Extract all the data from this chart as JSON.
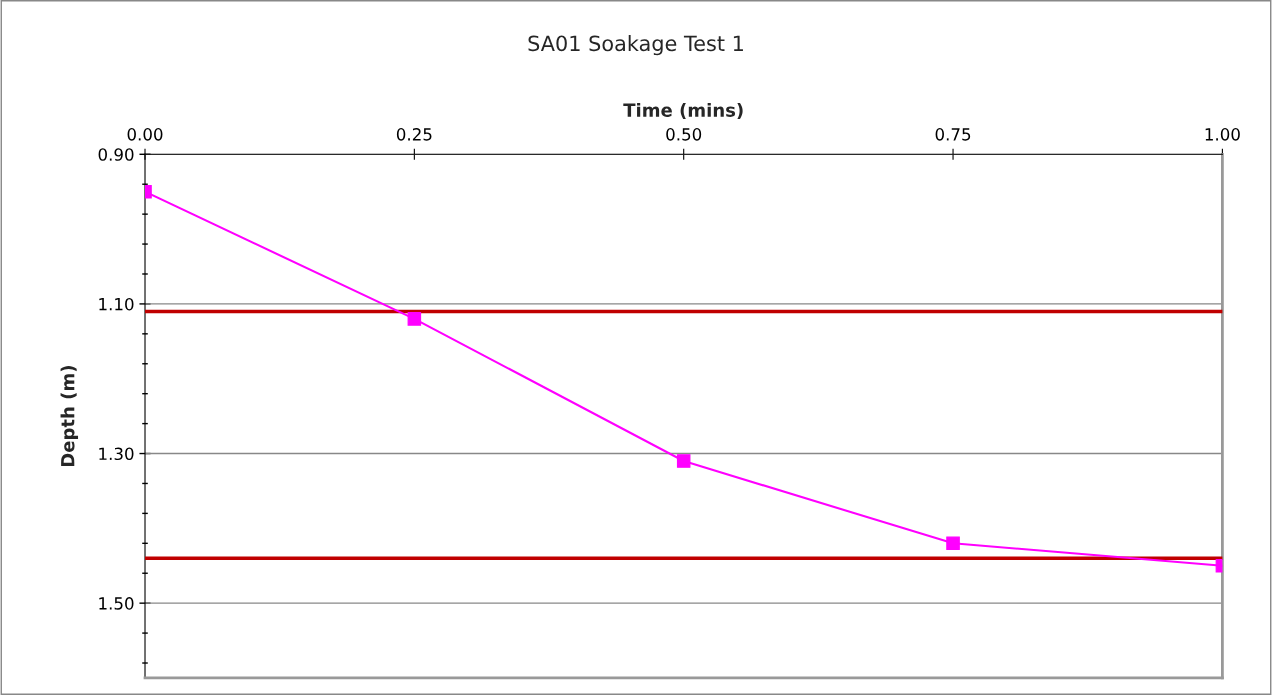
{
  "chart_data": {
    "type": "line",
    "title": "SA01 Soakage Test 1",
    "xlabel": "Time (mins)",
    "ylabel": "Depth (m)",
    "x": [
      0,
      0.25,
      0.5,
      0.75,
      1.0
    ],
    "series": [
      {
        "color": "#ff00ff",
        "values": [
          0.95,
          1.12,
          1.31,
          1.42,
          1.45
        ]
      }
    ],
    "marker": "square",
    "line_style": "solid",
    "xlim": [
      0,
      1
    ],
    "xticks": [
      {
        "value": 0,
        "label": "0.00"
      },
      {
        "value": 0.25,
        "label": "0.25"
      },
      {
        "value": 0.5,
        "label": "0.50"
      },
      {
        "value": 0.75,
        "label": "0.75"
      },
      {
        "value": 1.0,
        "label": "1.00"
      }
    ],
    "ylim": [
      1.6,
      0.9
    ],
    "yticks": [
      {
        "value": 0.9,
        "label": "0.90"
      },
      {
        "value": 0.94,
        "label": null
      },
      {
        "value": 0.98,
        "label": null
      },
      {
        "value": 1.02,
        "label": null
      },
      {
        "value": 1.06,
        "label": null
      },
      {
        "value": 1.1,
        "label": "1.10"
      },
      {
        "value": 1.14,
        "label": null
      },
      {
        "value": 1.18,
        "label": null
      },
      {
        "value": 1.22,
        "label": null
      },
      {
        "value": 1.26,
        "label": null
      },
      {
        "value": 1.3,
        "label": "1.30"
      },
      {
        "value": 1.34,
        "label": null
      },
      {
        "value": 1.38,
        "label": null
      },
      {
        "value": 1.42,
        "label": null
      },
      {
        "value": 1.46,
        "label": null
      },
      {
        "value": 1.5,
        "label": "1.50"
      },
      {
        "value": 1.54,
        "label": null
      },
      {
        "value": 1.58,
        "label": null
      }
    ],
    "grid": "y",
    "ref_lines": [
      {
        "axis": "y",
        "value": 1.11,
        "color": "#c00000"
      },
      {
        "axis": "y",
        "value": 1.44,
        "color": "#c00000"
      }
    ]
  }
}
